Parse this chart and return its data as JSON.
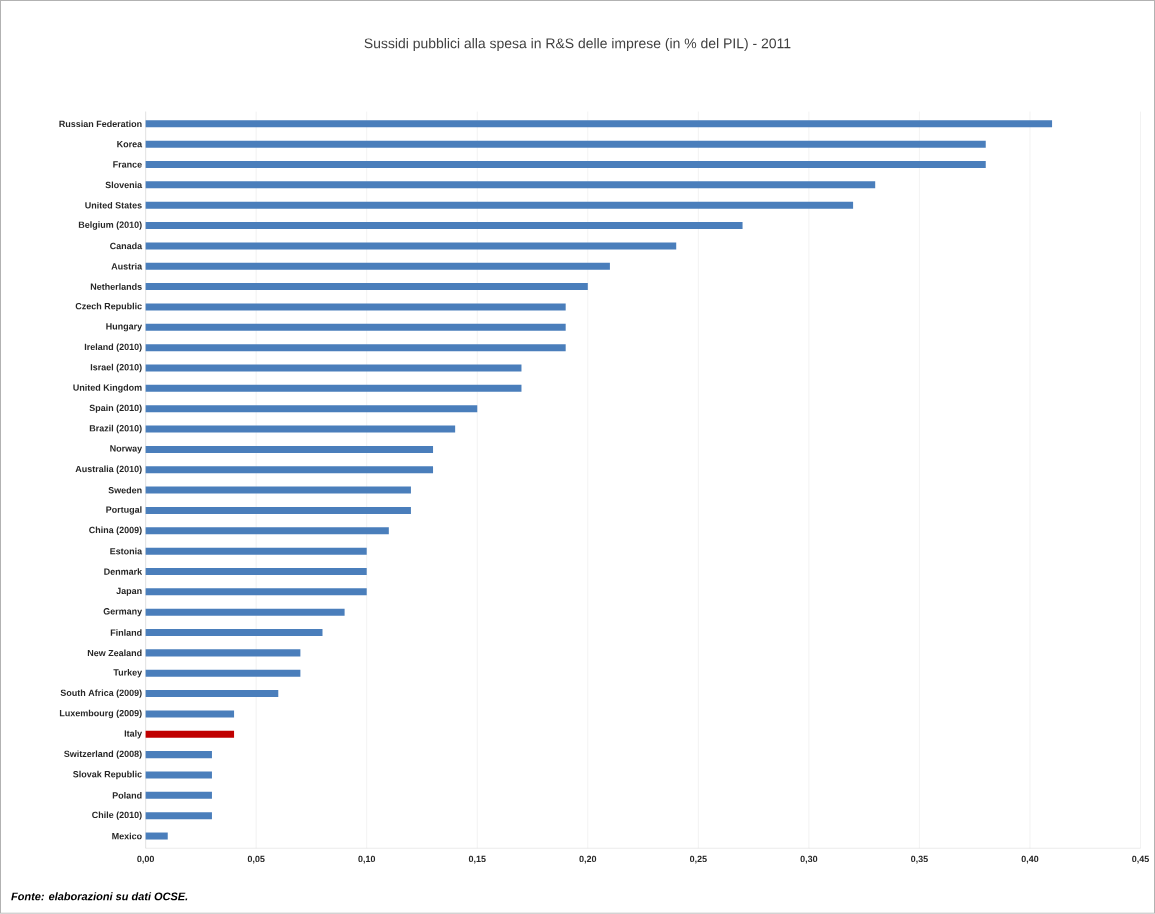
{
  "chart_data": {
    "type": "bar",
    "orientation": "horizontal",
    "title": "Sussidi pubblici alla spesa in R&S delle imprese (in % del PIL) - 2011",
    "categories": [
      "Russian Federation",
      "Korea",
      "France",
      "Slovenia",
      "United States",
      "Belgium (2010)",
      "Canada",
      "Austria",
      "Netherlands",
      "Czech Republic",
      "Hungary",
      "Ireland (2010)",
      "Israel (2010)",
      "United Kingdom",
      "Spain (2010)",
      "Brazil (2010)",
      "Norway",
      "Australia (2010)",
      "Sweden",
      "Portugal",
      "China (2009)",
      "Estonia",
      "Denmark",
      "Japan",
      "Germany",
      "Finland",
      "New Zealand",
      "Turkey",
      "South Africa (2009)",
      "Luxembourg (2009)",
      "Italy",
      "Switzerland (2008)",
      "Slovak Republic",
      "Poland",
      "Chile (2010)",
      "Mexico"
    ],
    "values": [
      0.41,
      0.38,
      0.38,
      0.33,
      0.32,
      0.27,
      0.24,
      0.21,
      0.2,
      0.19,
      0.19,
      0.19,
      0.17,
      0.17,
      0.15,
      0.14,
      0.13,
      0.13,
      0.12,
      0.12,
      0.11,
      0.1,
      0.1,
      0.1,
      0.09,
      0.08,
      0.07,
      0.07,
      0.06,
      0.04,
      0.04,
      0.03,
      0.03,
      0.03,
      0.03,
      0.01
    ],
    "colors": [
      "#4a7ebb",
      "#4a7ebb",
      "#4a7ebb",
      "#4a7ebb",
      "#4a7ebb",
      "#4a7ebb",
      "#4a7ebb",
      "#4a7ebb",
      "#4a7ebb",
      "#4a7ebb",
      "#4a7ebb",
      "#4a7ebb",
      "#4a7ebb",
      "#4a7ebb",
      "#4a7ebb",
      "#4a7ebb",
      "#4a7ebb",
      "#4a7ebb",
      "#4a7ebb",
      "#4a7ebb",
      "#4a7ebb",
      "#4a7ebb",
      "#4a7ebb",
      "#4a7ebb",
      "#4a7ebb",
      "#4a7ebb",
      "#4a7ebb",
      "#4a7ebb",
      "#4a7ebb",
      "#4a7ebb",
      "#c00000",
      "#4a7ebb",
      "#4a7ebb",
      "#4a7ebb",
      "#4a7ebb",
      "#4a7ebb"
    ],
    "xlim": [
      0,
      0.45
    ],
    "xticks": [
      {
        "value": 0,
        "label": "0,00"
      },
      {
        "value": 0.05,
        "label": "0,05"
      },
      {
        "value": 0.1,
        "label": "0,10"
      },
      {
        "value": 0.15,
        "label": "0,15"
      },
      {
        "value": 0.2,
        "label": "0,20"
      },
      {
        "value": 0.25,
        "label": "0,25"
      },
      {
        "value": 0.3,
        "label": "0,30"
      },
      {
        "value": 0.35,
        "label": "0,35"
      },
      {
        "value": 0.4,
        "label": "0,40"
      },
      {
        "value": 0.45,
        "label": "0,45"
      }
    ],
    "grid": "x",
    "annotations": [
      "Fonte: elaborazioni su dati OCSE."
    ]
  }
}
